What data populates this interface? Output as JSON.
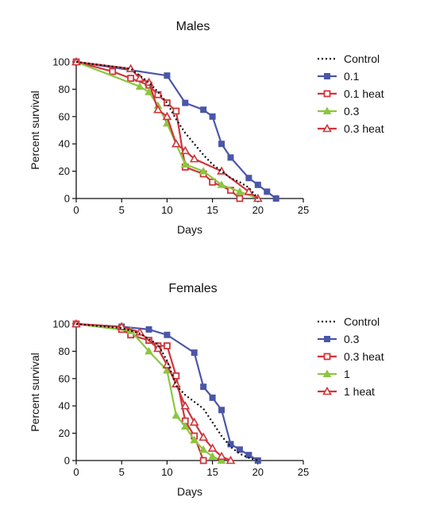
{
  "colors": {
    "control": "#111111",
    "blue": "#4a56a8",
    "red": "#d0343a",
    "green": "#8cc63f",
    "axis": "#111111"
  },
  "chart_data": [
    {
      "type": "line",
      "title": "Males",
      "xlabel": "Days",
      "ylabel": "Percent survival",
      "xlim": [
        0,
        25
      ],
      "ylim": [
        0,
        100
      ],
      "xticks": [
        0,
        5,
        10,
        15,
        20,
        25
      ],
      "yticks": [
        0,
        20,
        40,
        60,
        80,
        100
      ],
      "grid": false,
      "legend": "right",
      "series": [
        {
          "name": "Control",
          "style": "dotted",
          "color": "black",
          "marker": "none",
          "x": [
            0,
            6,
            8,
            9,
            10,
            11,
            12,
            13,
            14,
            15,
            16,
            17,
            18,
            19,
            20
          ],
          "y": [
            100,
            95,
            85,
            78,
            70,
            58,
            48,
            40,
            32,
            25,
            20,
            15,
            12,
            8,
            0
          ]
        },
        {
          "name": "0.1",
          "style": "solid",
          "color": "blue",
          "marker": "square",
          "x": [
            0,
            10,
            12,
            14,
            15,
            16,
            17,
            19,
            20,
            21,
            22
          ],
          "y": [
            100,
            90,
            70,
            65,
            60,
            40,
            30,
            15,
            10,
            5,
            0
          ]
        },
        {
          "name": "0.1 heat",
          "style": "solid",
          "color": "red",
          "marker": "open-square",
          "x": [
            0,
            4,
            6,
            8,
            9,
            10,
            11,
            12,
            14,
            15,
            17,
            18
          ],
          "y": [
            100,
            93,
            88,
            83,
            76,
            70,
            64,
            23,
            18,
            12,
            6,
            0
          ]
        },
        {
          "name": "0.3",
          "style": "solid",
          "color": "green",
          "marker": "triangle",
          "x": [
            0,
            7,
            8,
            9,
            10,
            11,
            12,
            14,
            16,
            18,
            20
          ],
          "y": [
            100,
            82,
            78,
            68,
            55,
            40,
            25,
            20,
            10,
            5,
            0
          ]
        },
        {
          "name": "0.3 heat",
          "style": "solid",
          "color": "red",
          "marker": "open-triangle",
          "x": [
            0,
            6,
            7,
            8,
            9,
            10,
            11,
            12,
            13,
            16,
            19,
            20
          ],
          "y": [
            100,
            95,
            88,
            85,
            65,
            60,
            40,
            35,
            29,
            20,
            5,
            0
          ]
        }
      ]
    },
    {
      "type": "line",
      "title": "Females",
      "xlabel": "Days",
      "ylabel": "Percent survival",
      "xlim": [
        0,
        25
      ],
      "ylim": [
        0,
        100
      ],
      "xticks": [
        0,
        5,
        10,
        15,
        20,
        25
      ],
      "yticks": [
        0,
        20,
        40,
        60,
        80,
        100
      ],
      "grid": false,
      "legend": "right",
      "series": [
        {
          "name": "Control",
          "style": "dotted",
          "color": "black",
          "marker": "none",
          "x": [
            0,
            5,
            7,
            9,
            10,
            11,
            12,
            13,
            14,
            15,
            16,
            17,
            18,
            19,
            20
          ],
          "y": [
            100,
            97,
            93,
            85,
            73,
            55,
            48,
            43,
            38,
            28,
            18,
            10,
            5,
            2,
            0
          ]
        },
        {
          "name": "0.3",
          "style": "solid",
          "color": "blue",
          "marker": "square",
          "x": [
            0,
            5,
            8,
            10,
            13,
            14,
            15,
            16,
            17,
            18,
            19,
            20
          ],
          "y": [
            100,
            98,
            96,
            92,
            79,
            54,
            46,
            37,
            12,
            8,
            4,
            0
          ]
        },
        {
          "name": "0.3 heat",
          "style": "solid",
          "color": "red",
          "marker": "open-square",
          "x": [
            0,
            5,
            6,
            8,
            9,
            10,
            11,
            12,
            13,
            14
          ],
          "y": [
            100,
            96,
            92,
            88,
            84,
            84,
            62,
            29,
            18,
            0
          ]
        },
        {
          "name": "1",
          "style": "solid",
          "color": "green",
          "marker": "triangle",
          "x": [
            0,
            6,
            8,
            10,
            11,
            12,
            13,
            14,
            15,
            16
          ],
          "y": [
            100,
            95,
            80,
            66,
            33,
            25,
            15,
            8,
            3,
            0
          ]
        },
        {
          "name": "1 heat",
          "style": "solid",
          "color": "red",
          "marker": "open-triangle",
          "x": [
            0,
            5,
            7,
            9,
            10,
            11,
            12,
            13,
            14,
            15,
            16,
            17
          ],
          "y": [
            100,
            98,
            94,
            82,
            70,
            56,
            40,
            28,
            17,
            9,
            3,
            0
          ]
        }
      ]
    }
  ]
}
